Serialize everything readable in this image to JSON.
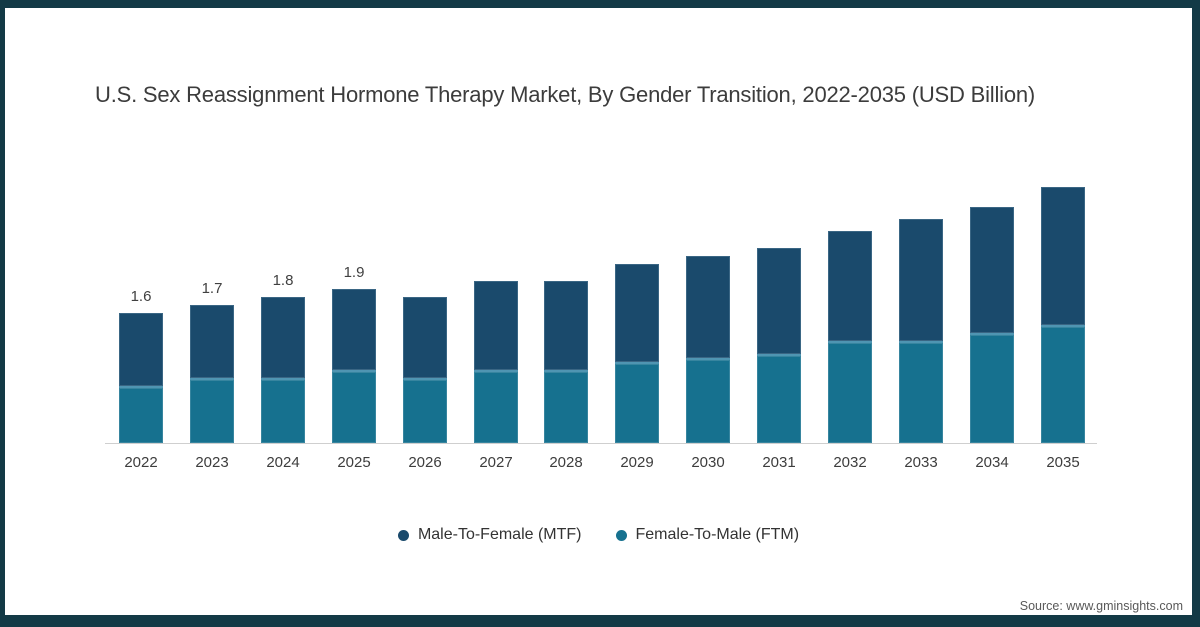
{
  "title": "U.S. Sex Reassignment Hormone Therapy Market, By Gender Transition, 2022-2035 (USD Billion)",
  "source": {
    "text": "Source: www.gminsights.com"
  },
  "colors": {
    "frame_border": "#133a46",
    "mtf_bar": "#1a4a6c",
    "ftm_bar": "#16718f",
    "segment_divider": "#4f95b2",
    "axis_line": "#cfcfcf"
  },
  "chart_data": {
    "type": "bar",
    "stacked": true,
    "title": "U.S. Sex Reassignment Hormone Therapy Market, By Gender Transition, 2022-2035 (USD Billion)",
    "units": "USD Billion",
    "grid": false,
    "legend_position": "bottom",
    "ylim": [
      0,
      3.3
    ],
    "categories": [
      "2022",
      "2023",
      "2024",
      "2025",
      "2026",
      "2027",
      "2028",
      "2029",
      "2030",
      "2031",
      "2032",
      "2033",
      "2034",
      "2035"
    ],
    "series": [
      {
        "name": "Male-To-Female (MTF)",
        "color": "#1a4a6c",
        "values": [
          0.9,
          0.9,
          1.0,
          1.0,
          1.0,
          1.1,
          1.1,
          1.2,
          1.25,
          1.3,
          1.35,
          1.5,
          1.55,
          1.7
        ]
      },
      {
        "name": "Female-To-Male (FTM)",
        "color": "#16718f",
        "values": [
          0.7,
          0.8,
          0.8,
          0.9,
          0.8,
          0.9,
          0.9,
          1.0,
          1.05,
          1.1,
          1.25,
          1.25,
          1.35,
          1.45
        ]
      }
    ],
    "totals": [
      1.6,
      1.7,
      1.8,
      1.9,
      1.8,
      2.0,
      2.0,
      2.2,
      2.3,
      2.4,
      2.6,
      2.75,
      2.9,
      3.15
    ],
    "total_labels": [
      "1.6",
      "1.7",
      "1.8",
      "1.9",
      "",
      "",
      "",
      "",
      "",
      "",
      "",
      "",
      "",
      ""
    ]
  }
}
